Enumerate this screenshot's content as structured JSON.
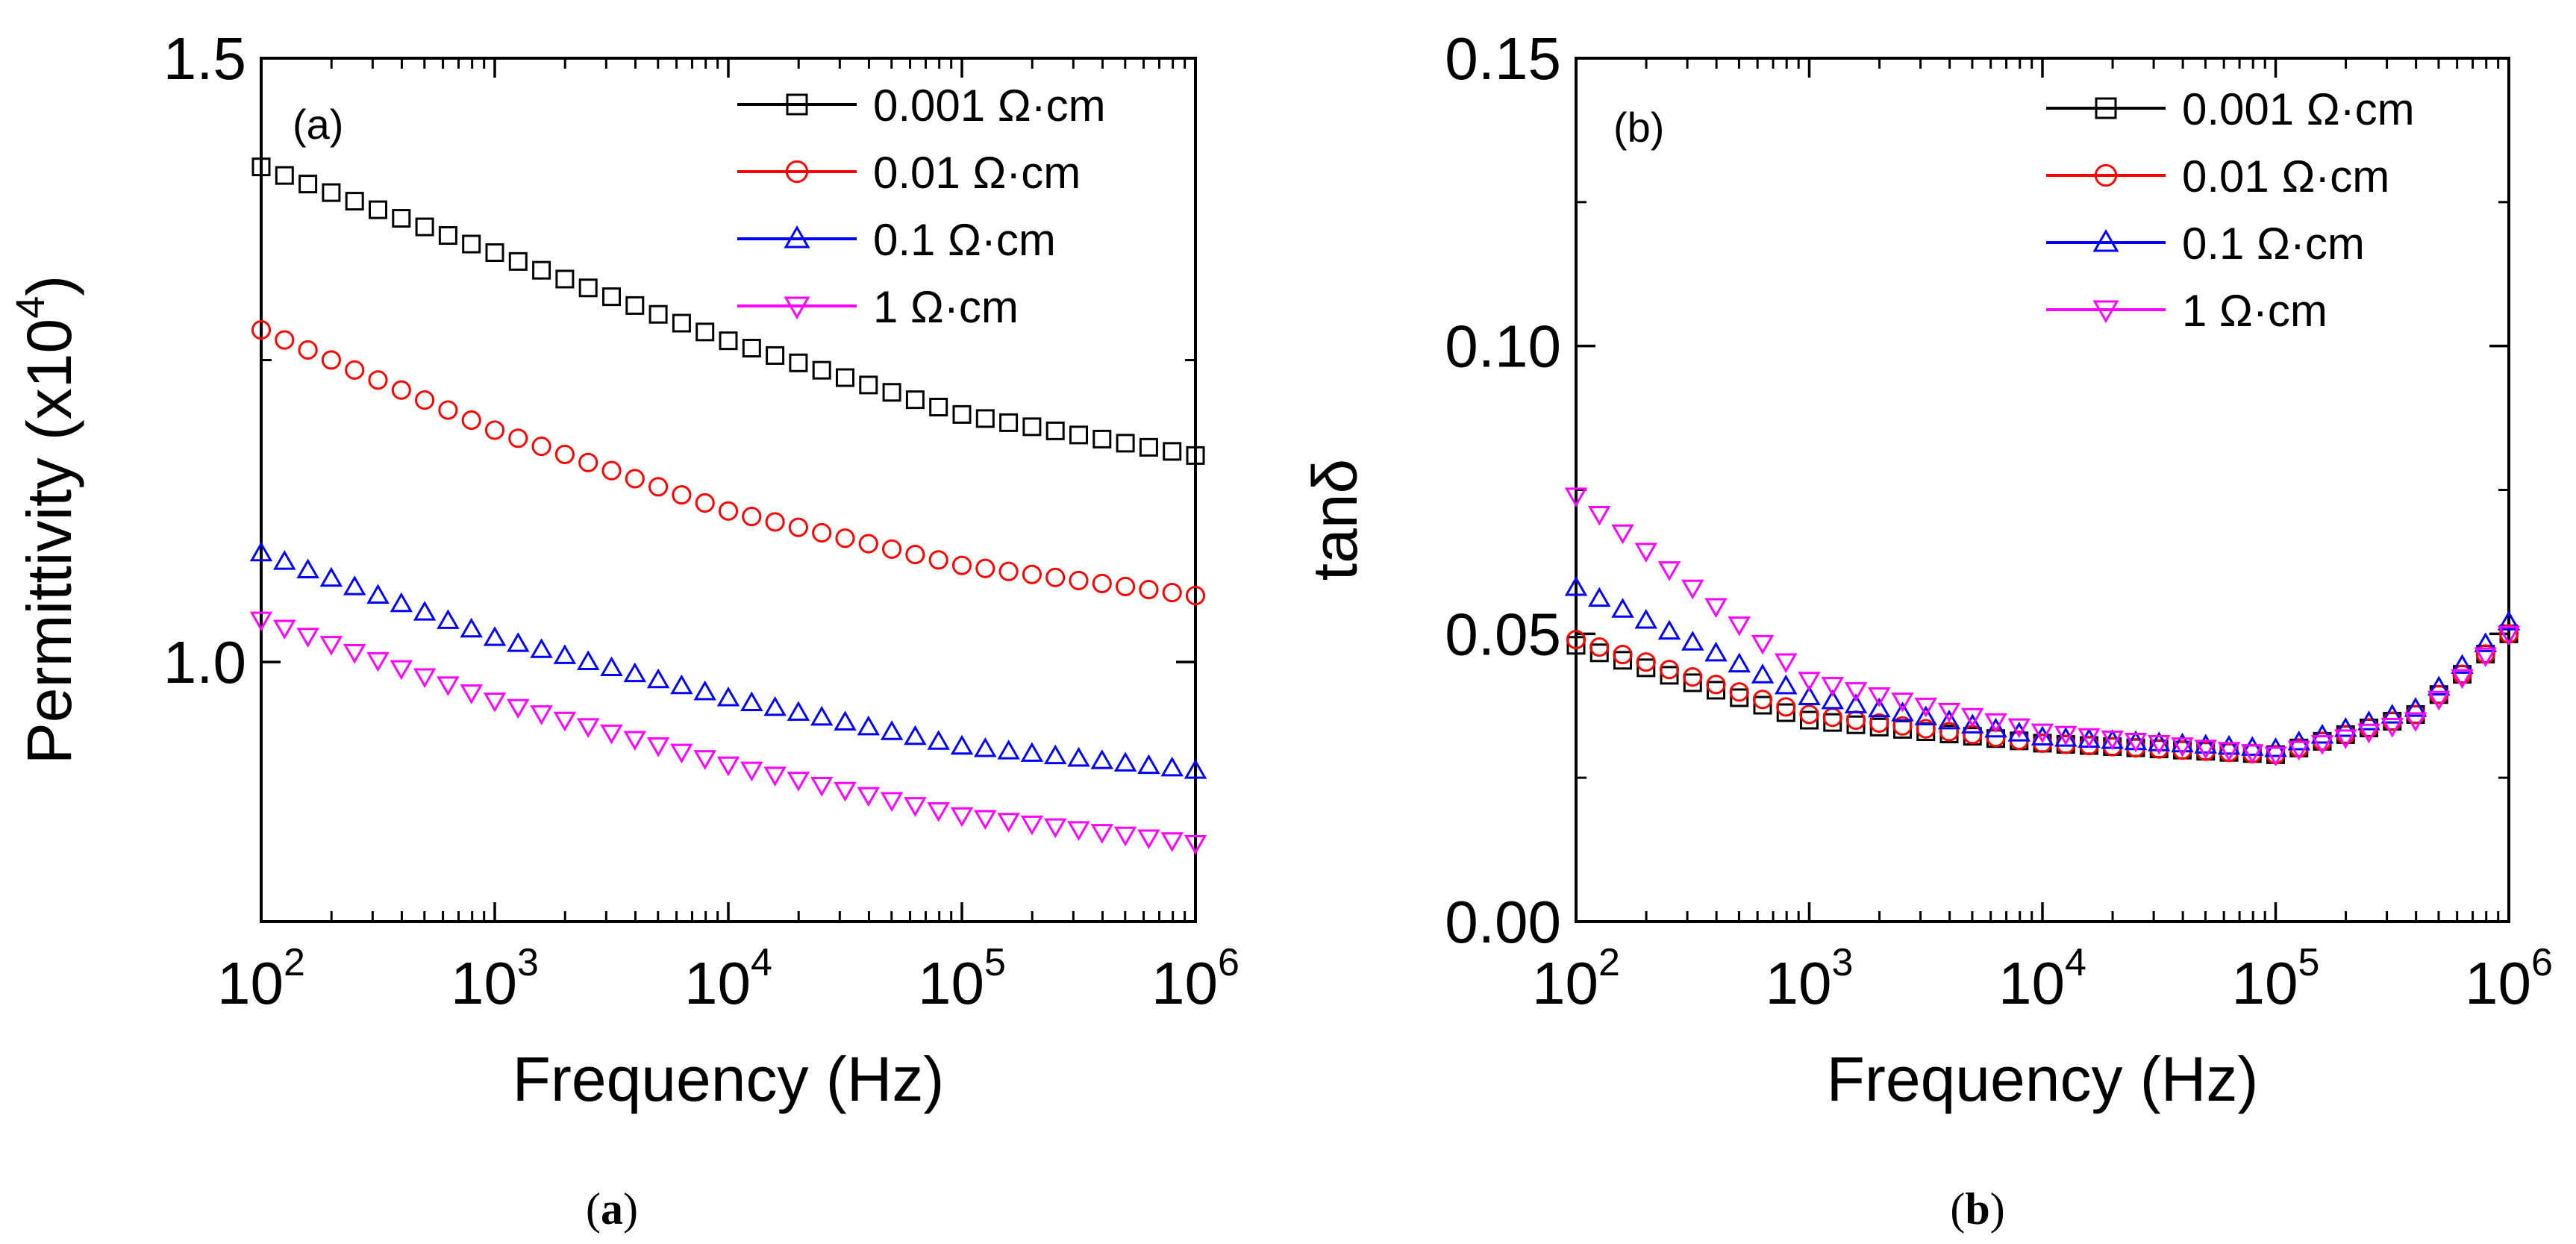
{
  "chart_data": [
    {
      "type": "scatter",
      "panel_label": "(a)",
      "caption_letter": "a",
      "xlabel": "Frequency (Hz)",
      "ylabel": "Permittivity (x10",
      "ylabel_exp": "4",
      "ylabel_close": ")",
      "x_scale": "log",
      "xlim": [
        100,
        1000000
      ],
      "ylim": [
        0.785,
        1.5
      ],
      "x_ticks": [
        100,
        1000,
        10000,
        100000,
        1000000
      ],
      "x_tick_labels": [
        [
          "10",
          "2"
        ],
        [
          "10",
          "3"
        ],
        [
          "10",
          "4"
        ],
        [
          "10",
          "5"
        ],
        [
          "10",
          "6"
        ]
      ],
      "y_ticks": [
        1.0,
        1.5
      ],
      "y_tick_labels": [
        "1.0",
        "1.5"
      ],
      "grid": false,
      "legend_position": "top-right",
      "series": [
        {
          "name": "0.001 Ω·cm",
          "color": "#000000",
          "marker": "square",
          "x": [
            100,
            1000,
            10000,
            100000,
            1000000
          ],
          "y": [
            1.41,
            1.339,
            1.266,
            1.205,
            1.171
          ]
        },
        {
          "name": "0.01 Ω·cm",
          "color": "#ff0000",
          "marker": "circle",
          "x": [
            100,
            1000,
            10000,
            100000,
            1000000
          ],
          "y": [
            1.275,
            1.192,
            1.125,
            1.08,
            1.055
          ]
        },
        {
          "name": "0.1 Ω·cm",
          "color": "#0000ff",
          "marker": "triangle-up",
          "x": [
            100,
            1000,
            10000,
            100000,
            1000000
          ],
          "y": [
            1.09,
            1.02,
            0.97,
            0.93,
            0.91
          ]
        },
        {
          "name": "1 Ω·cm",
          "color": "#ff00ff",
          "marker": "triangle-down",
          "x": [
            100,
            1000,
            10000,
            100000,
            1000000
          ],
          "y": [
            1.035,
            0.968,
            0.915,
            0.873,
            0.85
          ]
        }
      ]
    },
    {
      "type": "scatter",
      "panel_label": "(b)",
      "caption_letter": "b",
      "xlabel": "Frequency (Hz)",
      "ylabel": "tanδ",
      "x_scale": "log",
      "xlim": [
        100,
        1000000
      ],
      "ylim": [
        0.0,
        0.15
      ],
      "x_ticks": [
        100,
        1000,
        10000,
        100000,
        1000000
      ],
      "x_tick_labels": [
        [
          "10",
          "2"
        ],
        [
          "10",
          "3"
        ],
        [
          "10",
          "4"
        ],
        [
          "10",
          "5"
        ],
        [
          "10",
          "6"
        ]
      ],
      "y_ticks": [
        0.0,
        0.05,
        0.1,
        0.15
      ],
      "y_tick_labels": [
        "0.00",
        "0.05",
        "0.10",
        "0.15"
      ],
      "grid": false,
      "legend_position": "top-right",
      "series": [
        {
          "name": "0.001 Ω·cm",
          "color": "#000000",
          "marker": "square",
          "x": [
            100,
            1000,
            10000,
            100000,
            400000,
            1000000
          ],
          "y": [
            0.048,
            0.035,
            0.031,
            0.029,
            0.036,
            0.05
          ]
        },
        {
          "name": "0.01 Ω·cm",
          "color": "#ff0000",
          "marker": "circle",
          "x": [
            100,
            1000,
            10000,
            100000,
            400000,
            1000000
          ],
          "y": [
            0.049,
            0.036,
            0.031,
            0.029,
            0.036,
            0.05
          ]
        },
        {
          "name": "0.1 Ω·cm",
          "color": "#0000ff",
          "marker": "triangle-up",
          "x": [
            100,
            1000,
            10000,
            100000,
            400000,
            1000000
          ],
          "y": [
            0.058,
            0.039,
            0.032,
            0.03,
            0.037,
            0.052
          ]
        },
        {
          "name": "1 Ω·cm",
          "color": "#ff00ff",
          "marker": "triangle-down",
          "x": [
            100,
            1000,
            10000,
            100000,
            400000,
            1000000
          ],
          "y": [
            0.074,
            0.042,
            0.033,
            0.029,
            0.035,
            0.05
          ]
        }
      ]
    }
  ]
}
